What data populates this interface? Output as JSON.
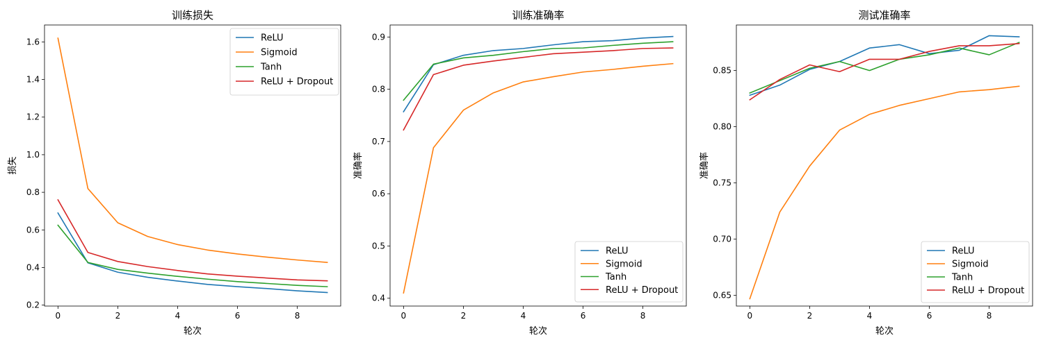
{
  "chart_data": [
    {
      "type": "line",
      "title": "训练损失",
      "xlabel": "轮次",
      "ylabel": "损失",
      "xlim": [
        -0.45,
        9.45
      ],
      "ylim": [
        0.195,
        1.69
      ],
      "xticks": [
        0,
        2,
        4,
        6,
        8
      ],
      "yticks": [
        0.2,
        0.4,
        0.6,
        0.8,
        1.0,
        1.2,
        1.4,
        1.6
      ],
      "ytick_decimals": 1,
      "legend": "top-right",
      "grid": false,
      "x": [
        0,
        1,
        2,
        3,
        4,
        5,
        6,
        7,
        8,
        9
      ],
      "series": [
        {
          "name": "ReLU",
          "color": "#1f77b4",
          "values": [
            0.69,
            0.425,
            0.375,
            0.348,
            0.328,
            0.31,
            0.298,
            0.288,
            0.276,
            0.267
          ]
        },
        {
          "name": "Sigmoid",
          "color": "#ff7f0e",
          "values": [
            1.62,
            0.82,
            0.638,
            0.565,
            0.522,
            0.493,
            0.472,
            0.455,
            0.44,
            0.427
          ]
        },
        {
          "name": "Tanh",
          "color": "#2ca02c",
          "values": [
            0.625,
            0.427,
            0.39,
            0.37,
            0.353,
            0.338,
            0.325,
            0.315,
            0.305,
            0.298
          ]
        },
        {
          "name": "ReLU + Dropout",
          "color": "#d62728",
          "values": [
            0.76,
            0.48,
            0.432,
            0.405,
            0.384,
            0.366,
            0.354,
            0.344,
            0.334,
            0.329
          ]
        }
      ]
    },
    {
      "type": "line",
      "title": "训练准确率",
      "xlabel": "轮次",
      "ylabel": "准确率",
      "xlim": [
        -0.45,
        9.45
      ],
      "ylim": [
        0.385,
        0.923
      ],
      "xticks": [
        0,
        2,
        4,
        6,
        8
      ],
      "yticks": [
        0.4,
        0.5,
        0.6,
        0.7,
        0.8,
        0.9
      ],
      "ytick_decimals": 1,
      "legend": "bottom-right",
      "grid": false,
      "x": [
        0,
        1,
        2,
        3,
        4,
        5,
        6,
        7,
        8,
        9
      ],
      "series": [
        {
          "name": "ReLU",
          "color": "#1f77b4",
          "values": [
            0.757,
            0.847,
            0.865,
            0.874,
            0.878,
            0.885,
            0.891,
            0.893,
            0.898,
            0.901
          ]
        },
        {
          "name": "Sigmoid",
          "color": "#ff7f0e",
          "values": [
            0.41,
            0.688,
            0.76,
            0.793,
            0.814,
            0.824,
            0.833,
            0.838,
            0.844,
            0.849
          ]
        },
        {
          "name": "Tanh",
          "color": "#2ca02c",
          "values": [
            0.779,
            0.848,
            0.86,
            0.865,
            0.872,
            0.878,
            0.879,
            0.884,
            0.888,
            0.891
          ]
        },
        {
          "name": "ReLU + Dropout",
          "color": "#d62728",
          "values": [
            0.722,
            0.828,
            0.846,
            0.854,
            0.861,
            0.868,
            0.871,
            0.874,
            0.878,
            0.879
          ]
        }
      ]
    },
    {
      "type": "line",
      "title": "测试准确率",
      "xlabel": "轮次",
      "ylabel": "准确率",
      "xlim": [
        -0.45,
        9.45
      ],
      "ylim": [
        0.6405,
        0.8905
      ],
      "xticks": [
        0,
        2,
        4,
        6,
        8
      ],
      "yticks": [
        0.65,
        0.7,
        0.75,
        0.8,
        0.85
      ],
      "ytick_decimals": 2,
      "legend": "bottom-right",
      "grid": false,
      "x": [
        0,
        1,
        2,
        3,
        4,
        5,
        6,
        7,
        8,
        9
      ],
      "series": [
        {
          "name": "ReLU",
          "color": "#1f77b4",
          "values": [
            0.828,
            0.837,
            0.851,
            0.858,
            0.87,
            0.873,
            0.865,
            0.868,
            0.881,
            0.88
          ]
        },
        {
          "name": "Sigmoid",
          "color": "#ff7f0e",
          "values": [
            0.647,
            0.724,
            0.765,
            0.797,
            0.811,
            0.819,
            0.825,
            0.831,
            0.833,
            0.836
          ]
        },
        {
          "name": "Tanh",
          "color": "#2ca02c",
          "values": [
            0.83,
            0.841,
            0.852,
            0.858,
            0.85,
            0.86,
            0.864,
            0.87,
            0.864,
            0.875
          ]
        },
        {
          "name": "ReLU + Dropout",
          "color": "#d62728",
          "values": [
            0.824,
            0.842,
            0.855,
            0.849,
            0.86,
            0.86,
            0.867,
            0.872,
            0.872,
            0.874
          ]
        }
      ]
    }
  ]
}
